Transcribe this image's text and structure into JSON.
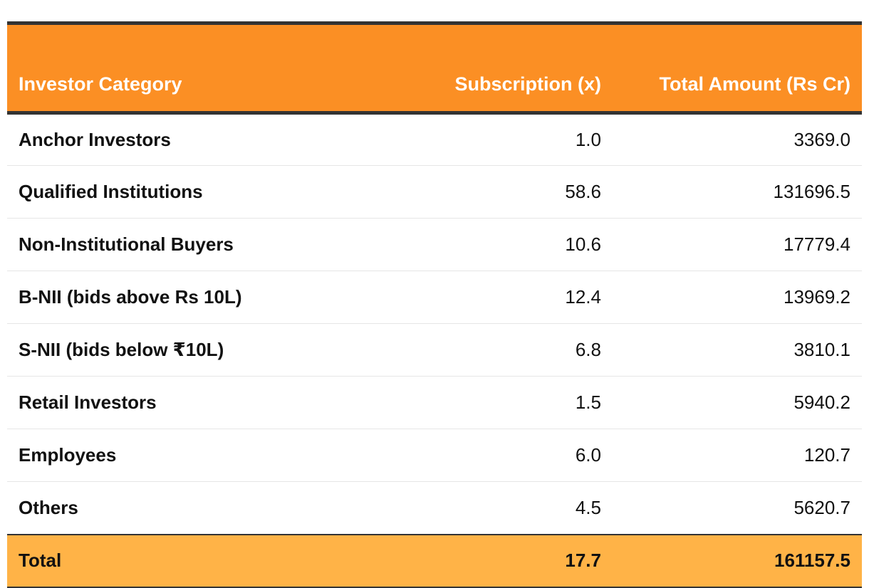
{
  "chart_data": {
    "type": "table",
    "columns": [
      "Investor Category",
      "Subscription (x)",
      "Total Amount (Rs Cr)"
    ],
    "rows": [
      {
        "category": "Anchor Investors",
        "subscription": "1.0",
        "amount": "3369.0"
      },
      {
        "category": "Qualified Institutions",
        "subscription": "58.6",
        "amount": "131696.5"
      },
      {
        "category": "Non-Institutional Buyers",
        "subscription": "10.6",
        "amount": "17779.4"
      },
      {
        "category": "B-NII (bids above Rs 10L)",
        "subscription": "12.4",
        "amount": "13969.2"
      },
      {
        "category": "S-NII (bids below ₹10L)",
        "subscription": "6.8",
        "amount": "3810.1"
      },
      {
        "category": "Retail Investors",
        "subscription": "1.5",
        "amount": "5940.2"
      },
      {
        "category": "Employees",
        "subscription": "6.0",
        "amount": "120.7"
      },
      {
        "category": "Others",
        "subscription": "4.5",
        "amount": "5620.7"
      }
    ],
    "total": {
      "category": "Total",
      "subscription": "17.7",
      "amount": "161157.5"
    },
    "colors": {
      "header": "#fb8f24",
      "total_row": "#ffb347",
      "rule": "#333333"
    }
  }
}
